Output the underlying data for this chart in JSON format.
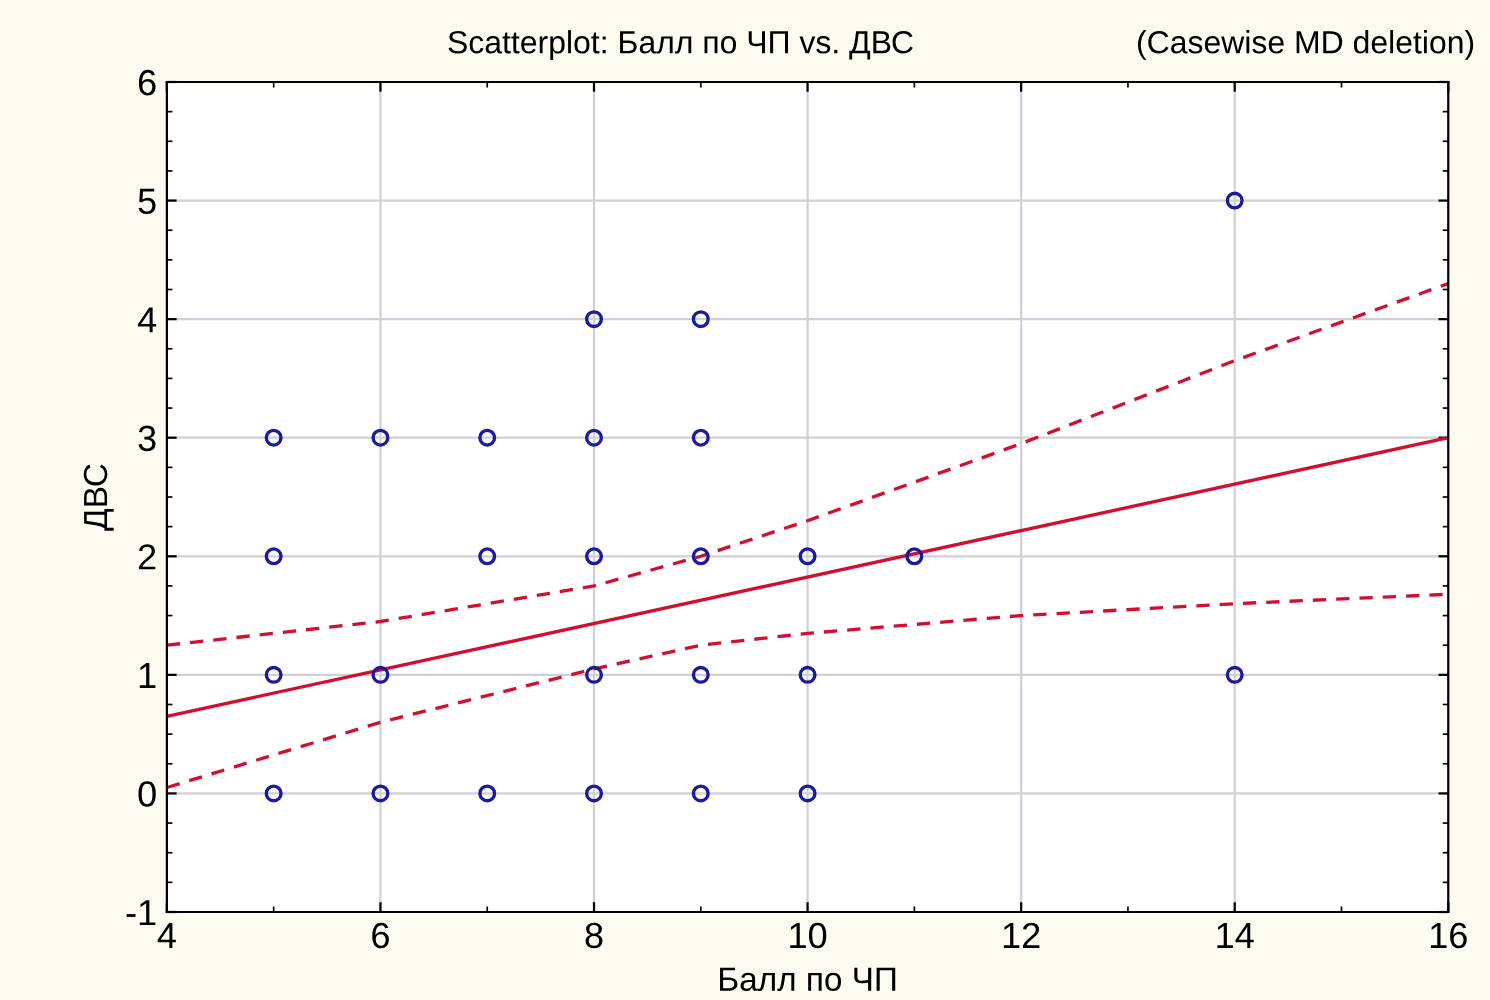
{
  "chart_data": {
    "type": "scatter",
    "title": "Scatterplot: Балл по ЧП vs. ДВС",
    "subtitle": "(Casewise MD deletion)",
    "xlabel": "Балл по ЧП",
    "ylabel": "ДВС",
    "xlim": [
      4,
      16
    ],
    "xticks": [
      4,
      6,
      8,
      10,
      12,
      14,
      16
    ],
    "ylim": [
      -1,
      6
    ],
    "yticks": [
      -1,
      0,
      1,
      2,
      3,
      4,
      5,
      6
    ],
    "grid": true,
    "legend": false,
    "series": [
      {
        "color": "#1a1a9c",
        "marker": "circle",
        "x": [
          5,
          6,
          7,
          8,
          9,
          8,
          9,
          14,
          5,
          7,
          8,
          9,
          10,
          11,
          5,
          6,
          8,
          9,
          10,
          14,
          5,
          6,
          7,
          8,
          9,
          10
        ],
        "values": [
          3,
          3,
          3,
          3,
          3,
          4,
          4,
          5,
          2,
          2,
          2,
          2,
          2,
          2,
          1,
          1,
          1,
          1,
          1,
          1,
          0,
          0,
          0,
          0,
          0,
          0
        ]
      },
      {
        "type": "line",
        "color": "#d01030",
        "line_style": "solid",
        "marker": "none",
        "x": [
          4,
          16
        ],
        "values": [
          0.65,
          3.0
        ]
      },
      {
        "type": "line",
        "color": "#d01030",
        "line_style": "dashed",
        "marker": "none",
        "x": [
          4,
          6,
          8,
          9,
          10,
          12,
          14,
          16
        ],
        "values": [
          1.25,
          1.45,
          1.75,
          2.0,
          2.3,
          2.95,
          3.65,
          4.3
        ]
      },
      {
        "type": "line",
        "color": "#d01030",
        "line_style": "dashed",
        "marker": "none",
        "x": [
          4,
          6,
          8,
          9,
          10,
          12,
          14,
          16
        ],
        "values": [
          0.05,
          0.6,
          1.05,
          1.25,
          1.35,
          1.5,
          1.6,
          1.68
        ]
      }
    ]
  }
}
